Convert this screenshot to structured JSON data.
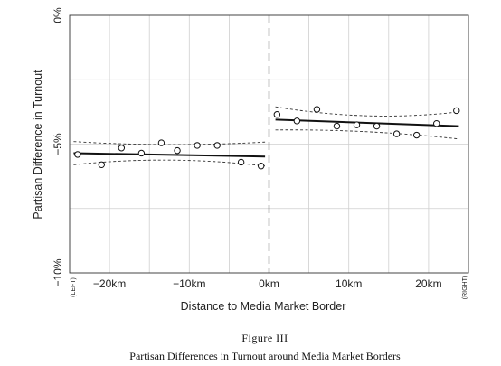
{
  "figure": {
    "number": "Figure III",
    "caption": "Partisan Differences in Turnout around Media Market Borders"
  },
  "chart_data": {
    "type": "scatter",
    "xlabel": "Distance to Media Market Border",
    "ylabel": "Partisan Difference in Turnout",
    "xlim": [
      -25,
      25
    ],
    "ylim": [
      -10,
      0
    ],
    "x_ticks": [
      -20,
      -10,
      0,
      10,
      20
    ],
    "x_tick_labels": [
      "−20km",
      "−10km",
      "0km",
      "10km",
      "20km"
    ],
    "y_ticks": [
      0,
      -5,
      -10
    ],
    "y_tick_labels": [
      "0%",
      "−5%",
      "−10%"
    ],
    "edge_labels": {
      "left": "(LEFT)",
      "right": "(RIGHT)"
    },
    "grid": true,
    "border_line_x": 0,
    "series": [
      {
        "points": [
          {
            "x": -24,
            "y": -5.4
          },
          {
            "x": -21,
            "y": -5.8
          },
          {
            "x": -18.5,
            "y": -5.15
          },
          {
            "x": -16,
            "y": -5.35
          },
          {
            "x": -13.5,
            "y": -4.95
          },
          {
            "x": -11.5,
            "y": -5.25
          },
          {
            "x": -9,
            "y": -5.05
          },
          {
            "x": -6.5,
            "y": -5.05
          },
          {
            "x": -3.5,
            "y": -5.7
          },
          {
            "x": -1,
            "y": -5.85
          }
        ],
        "fit": {
          "x": [
            -24.5,
            -0.5
          ],
          "y": [
            -5.35,
            -5.48
          ]
        },
        "ci_upper": {
          "x": [
            -24.5,
            -12.5,
            -0.5
          ],
          "y": [
            -4.9,
            -5.02,
            -4.92
          ]
        },
        "ci_lower": {
          "x": [
            -24.5,
            -12.5,
            -0.5
          ],
          "y": [
            -5.8,
            -5.62,
            -5.85
          ]
        }
      },
      {
        "points": [
          {
            "x": 1,
            "y": -3.85
          },
          {
            "x": 3.5,
            "y": -4.1
          },
          {
            "x": 6,
            "y": -3.65
          },
          {
            "x": 8.5,
            "y": -4.3
          },
          {
            "x": 11,
            "y": -4.25
          },
          {
            "x": 13.5,
            "y": -4.3
          },
          {
            "x": 16,
            "y": -4.6
          },
          {
            "x": 18.5,
            "y": -4.65
          },
          {
            "x": 21,
            "y": -4.2
          },
          {
            "x": 23.5,
            "y": -3.7
          }
        ],
        "fit": {
          "x": [
            0.8,
            23.8
          ],
          "y": [
            -4.05,
            -4.3
          ]
        },
        "ci_upper": {
          "x": [
            0.8,
            12.3,
            23.8
          ],
          "y": [
            -3.55,
            -3.9,
            -3.75
          ]
        },
        "ci_lower": {
          "x": [
            0.8,
            12.3,
            23.8
          ],
          "y": [
            -4.45,
            -4.52,
            -4.8
          ]
        }
      }
    ]
  }
}
